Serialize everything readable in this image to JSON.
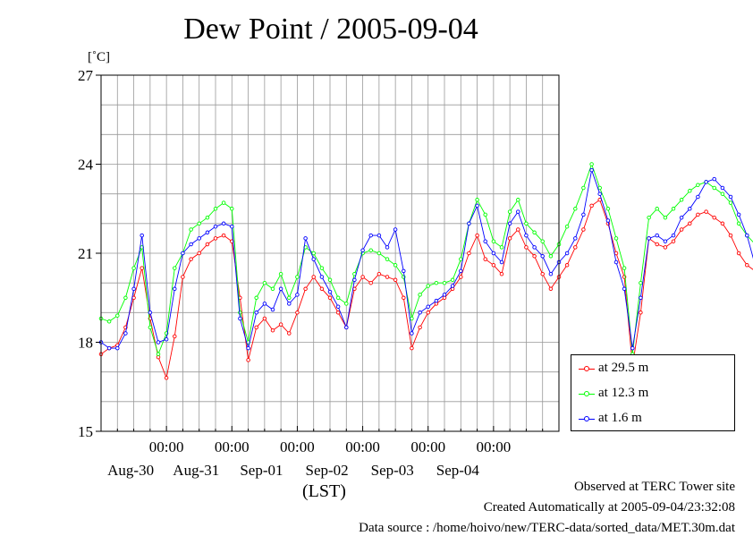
{
  "title": "Dew Point / 2005-09-04",
  "unit_label": "[˚C]",
  "xlabel": "(LST)",
  "footer": {
    "line1": "Observed at TERC Tower site",
    "line2": "Created Automatically at 2005-09-04/23:32:08",
    "line3": "Data source : /home/hoivo/new/TERC-data/sorted_data/MET.30m.dat"
  },
  "chart_data": {
    "type": "line",
    "title": "Dew Point / 2005-09-04",
    "ylabel": "[˚C]",
    "xlabel": "(LST)",
    "ylim": [
      15,
      27
    ],
    "yticks": [
      15,
      18,
      21,
      24,
      27
    ],
    "xlim": [
      "2005-08-29 00:00",
      "2005-09-05 00:00"
    ],
    "x_tick_labels": [
      {
        "x": "2005-08-30 00:00",
        "time": "00:00",
        "date": "Aug-30"
      },
      {
        "x": "2005-08-31 00:00",
        "time": "00:00",
        "date": "Aug-31"
      },
      {
        "x": "2005-09-01 00:00",
        "time": "00:00",
        "date": "Sep-01"
      },
      {
        "x": "2005-09-02 00:00",
        "time": "00:00",
        "date": "Sep-02"
      },
      {
        "x": "2005-09-03 00:00",
        "time": "00:00",
        "date": "Sep-03"
      },
      {
        "x": "2005-09-04 00:00",
        "time": "00:00",
        "date": "Sep-04"
      }
    ],
    "grid": true,
    "legend_position": "right",
    "x_start": "2005-08-29 00:00",
    "x_step_hours": 3,
    "series": [
      {
        "name": "at 29.5 m",
        "color": "#ff0000",
        "values": [
          17.6,
          17.8,
          17.9,
          18.5,
          19.5,
          20.5,
          18.8,
          17.5,
          16.8,
          18.2,
          20.2,
          20.8,
          21.0,
          21.3,
          21.5,
          21.6,
          21.4,
          19.5,
          17.4,
          18.5,
          18.8,
          18.4,
          18.6,
          18.3,
          19.0,
          19.8,
          20.2,
          19.8,
          19.5,
          19.0,
          18.5,
          19.8,
          20.2,
          20.0,
          20.3,
          20.2,
          20.1,
          19.5,
          17.8,
          18.5,
          19.0,
          19.3,
          19.5,
          19.8,
          20.2,
          21.0,
          21.6,
          20.8,
          20.6,
          20.3,
          21.5,
          21.8,
          21.2,
          20.9,
          20.3,
          19.8,
          20.2,
          20.6,
          21.2,
          21.8,
          22.6,
          22.8,
          22.0,
          21.0,
          20.2,
          17.2,
          19.0,
          21.5,
          21.3,
          21.2,
          21.4,
          21.8,
          22.0,
          22.3,
          22.4,
          22.2,
          22.0,
          21.6,
          21.0,
          20.6,
          20.4,
          20.5
        ]
      },
      {
        "name": "at 12.3 m",
        "color": "#00ff00",
        "values": [
          18.8,
          18.7,
          18.9,
          19.5,
          20.5,
          21.2,
          18.5,
          17.6,
          18.3,
          20.5,
          21.0,
          21.8,
          22.0,
          22.2,
          22.5,
          22.7,
          22.5,
          19.0,
          18.0,
          19.5,
          20.0,
          19.8,
          20.3,
          19.5,
          20.2,
          21.2,
          21.0,
          20.5,
          20.1,
          19.5,
          19.3,
          20.3,
          21.0,
          21.1,
          21.0,
          20.8,
          20.6,
          20.2,
          18.8,
          19.6,
          19.9,
          20.0,
          20.0,
          20.1,
          20.8,
          22.0,
          22.8,
          22.3,
          21.4,
          21.2,
          22.4,
          22.8,
          22.0,
          21.7,
          21.4,
          20.9,
          21.3,
          21.9,
          22.5,
          23.2,
          24.0,
          23.2,
          22.5,
          21.5,
          20.5,
          17.6,
          20.0,
          22.2,
          22.5,
          22.2,
          22.5,
          22.8,
          23.1,
          23.3,
          23.4,
          23.2,
          23.0,
          22.7,
          22.0,
          21.6,
          21.3,
          21.4
        ]
      },
      {
        "name": "at 1.6 m",
        "color": "#0000ff",
        "values": [
          18.0,
          17.8,
          17.8,
          18.3,
          19.8,
          21.6,
          19.0,
          18.0,
          18.1,
          19.8,
          21.0,
          21.3,
          21.5,
          21.7,
          21.9,
          22.0,
          21.9,
          18.8,
          17.8,
          19.0,
          19.3,
          19.1,
          19.8,
          19.3,
          19.6,
          21.5,
          20.8,
          20.2,
          19.7,
          19.2,
          18.5,
          20.1,
          21.1,
          21.6,
          21.6,
          21.2,
          21.8,
          20.4,
          18.3,
          19.0,
          19.2,
          19.4,
          19.6,
          19.9,
          20.4,
          22.0,
          22.6,
          21.4,
          21.0,
          20.7,
          22.0,
          22.4,
          21.6,
          21.2,
          20.9,
          20.3,
          20.7,
          21.0,
          21.5,
          22.3,
          23.8,
          23.0,
          22.1,
          20.7,
          19.8,
          17.8,
          19.5,
          21.5,
          21.6,
          21.4,
          21.6,
          22.2,
          22.5,
          22.9,
          23.4,
          23.5,
          23.2,
          22.9,
          22.3,
          21.6,
          20.6,
          20.5
        ]
      }
    ]
  }
}
